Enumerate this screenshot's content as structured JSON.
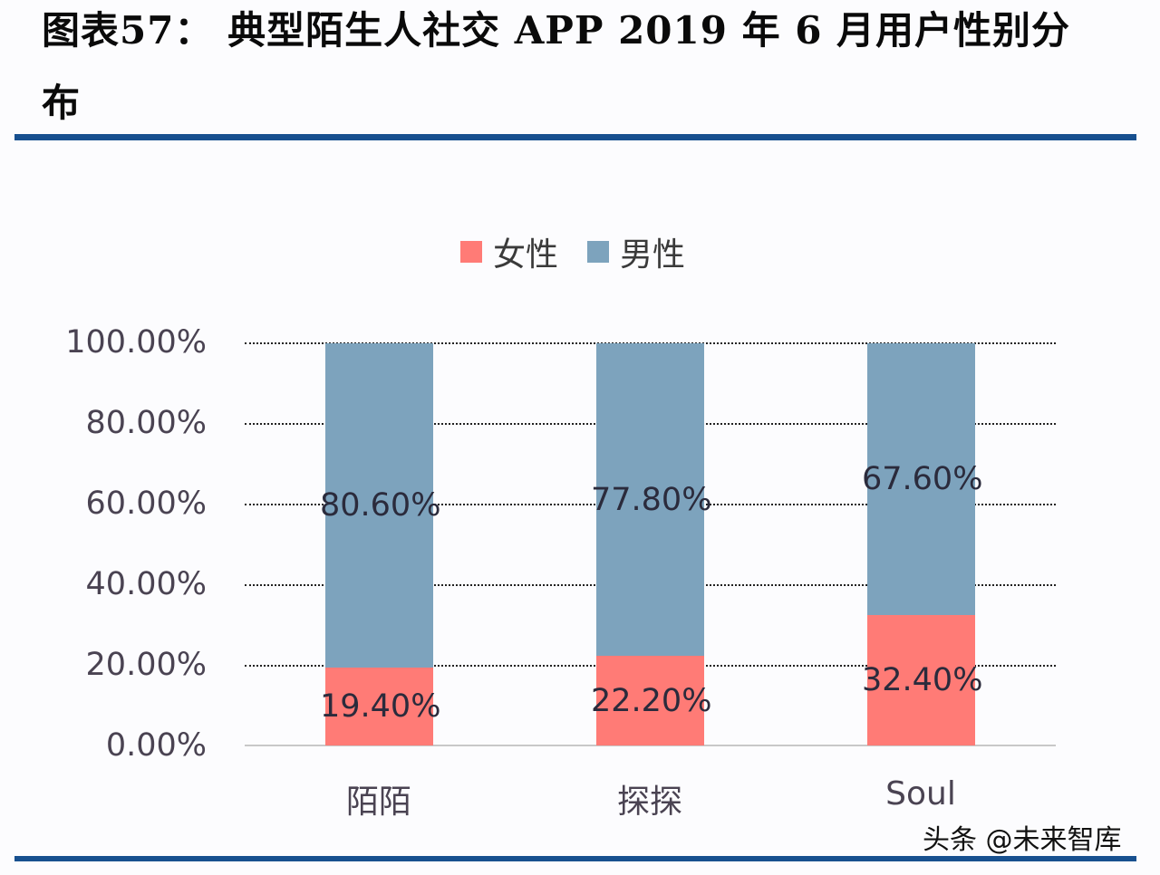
{
  "header": {
    "title_line1": "图表57：  典型陌生人社交 APP 2019 年 6 月用户性别分",
    "title_line2": "布",
    "rule_color": "#17508f"
  },
  "legend": [
    {
      "label": "女性",
      "color": "#ff7b76"
    },
    {
      "label": "男性",
      "color": "#7da3bd"
    }
  ],
  "y_axis": {
    "ticks": [
      "100.00%",
      "80.00%",
      "60.00%",
      "40.00%",
      "20.00%",
      "0.00%"
    ]
  },
  "x_axis": {
    "ticks": [
      "陌陌",
      "探探",
      "Soul"
    ]
  },
  "bars": [
    {
      "category": "陌陌",
      "female_label": "19.40%",
      "male_label": "80.60%"
    },
    {
      "category": "探探",
      "female_label": "22.20%",
      "male_label": "77.80%"
    },
    {
      "category": "Soul",
      "female_label": "32.40%",
      "male_label": "67.60%"
    }
  ],
  "watermark": "头条 @未来智库",
  "chart_data": {
    "type": "bar",
    "stacked": true,
    "title": "典型陌生人社交 APP 2019 年 6 月用户性别分布",
    "categories": [
      "陌陌",
      "探探",
      "Soul"
    ],
    "series": [
      {
        "name": "女性",
        "color": "#ff7b76",
        "values": [
          19.4,
          22.2,
          32.4
        ]
      },
      {
        "name": "男性",
        "color": "#7da3bd",
        "values": [
          80.6,
          77.8,
          67.6
        ]
      }
    ],
    "xlabel": "",
    "ylabel": "",
    "ylim": [
      0,
      100
    ],
    "y_tick_format": "0.00%",
    "y_ticks": [
      0,
      20,
      40,
      60,
      80,
      100
    ],
    "grid": "horizontal dotted",
    "legend_position": "top",
    "data_labels": true
  }
}
